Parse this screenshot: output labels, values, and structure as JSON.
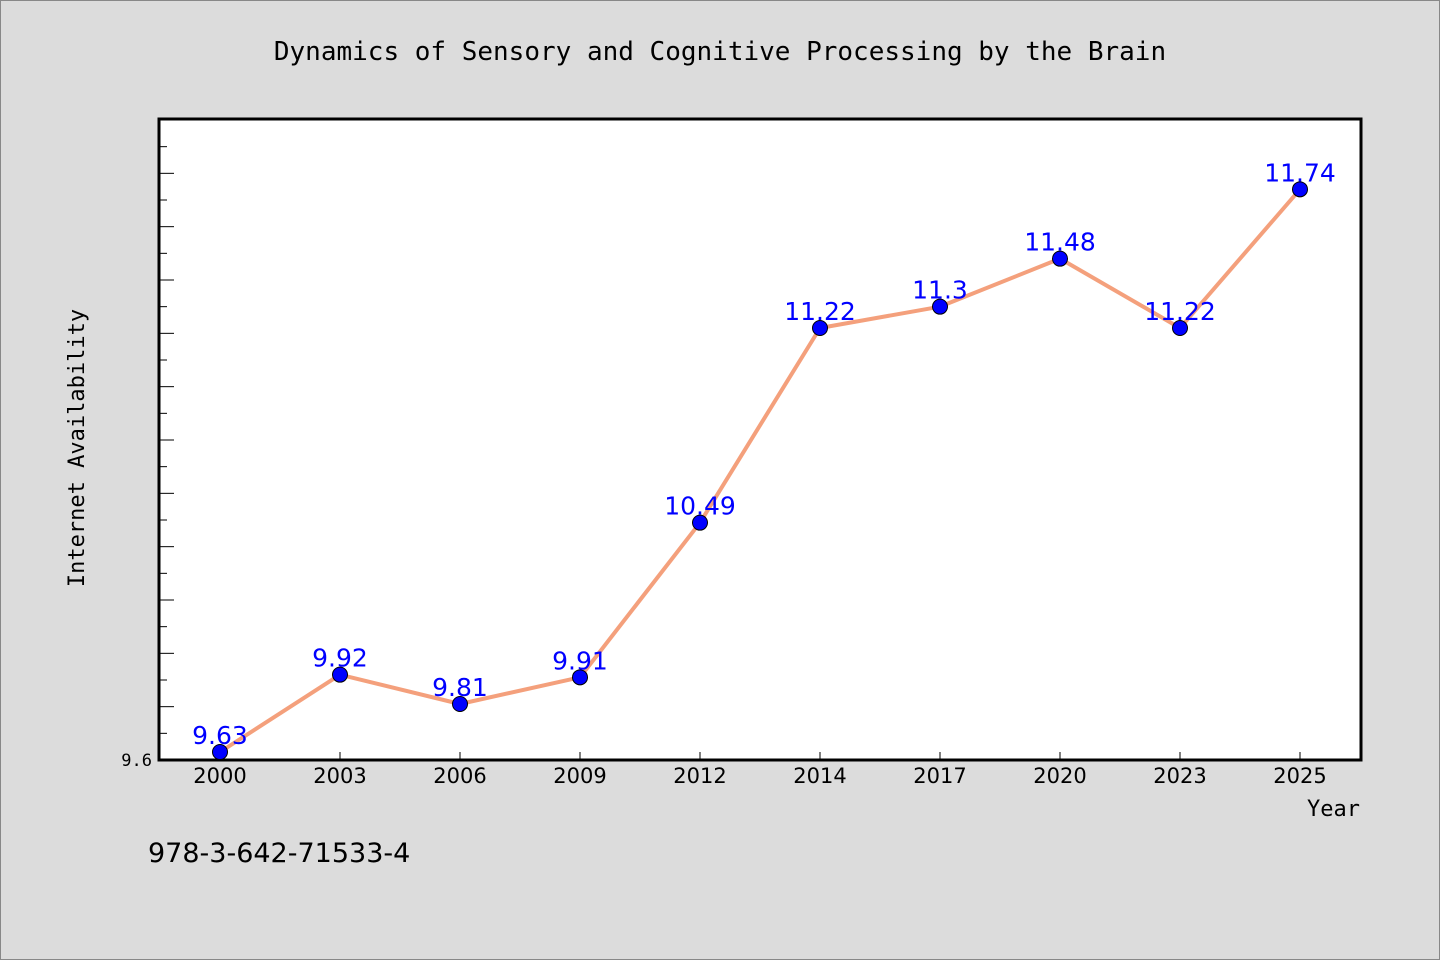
{
  "chart_data": {
    "type": "line",
    "title": "Dynamics of Sensory and Cognitive Processing by the Brain",
    "xlabel": "Year",
    "ylabel": "Internet Availability",
    "categories": [
      "2000",
      "2003",
      "2006",
      "2009",
      "2012",
      "2014",
      "2017",
      "2020",
      "2023",
      "2025"
    ],
    "values": [
      9.63,
      9.92,
      9.81,
      9.91,
      10.49,
      11.22,
      11.3,
      11.48,
      11.22,
      11.74
    ],
    "data_labels": [
      "9.63",
      "9.92",
      "9.81",
      "9.91",
      "10.49",
      "11.22",
      "11.3",
      "11.48",
      "11.22",
      "11.74"
    ],
    "ylim": [
      9.6,
      12.0
    ],
    "y_tick_labels": [
      "9.6"
    ],
    "grid": false,
    "legend": "none",
    "line_color": "#f4a07c",
    "marker_color": "#0000ff",
    "label_color": "#0000ff"
  },
  "footnote": "978-3-642-71533-4"
}
